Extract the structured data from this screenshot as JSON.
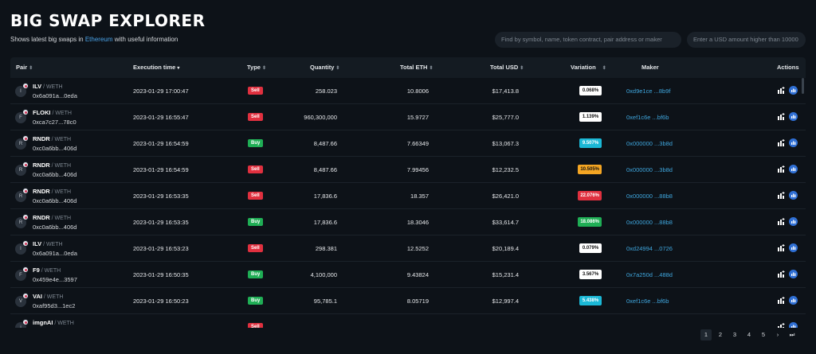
{
  "header": {
    "title": "BIG SWAP EXPLORER",
    "subtitle_prefix": "Shows latest big swaps in ",
    "subtitle_link": "Ethereum",
    "subtitle_suffix": " with useful information"
  },
  "search": {
    "symbol_placeholder": "Find by symbol, name, token contract, pair address or maker",
    "usd_placeholder": "Enter a USD amount higher than 10000"
  },
  "columns": {
    "pair": "Pair",
    "execution_time": "Execution time",
    "type": "Type",
    "quantity": "Quantity",
    "total_eth": "Total ETH",
    "total_usd": "Total USD",
    "variation": "Variation",
    "maker": "Maker",
    "actions": "Actions"
  },
  "rows": [
    {
      "initial": "I",
      "symbol": "ILV",
      "quote": " / WETH",
      "address": "0x6a091a...0eda",
      "time": "2023-01-29 17:00:47",
      "type": "Sell",
      "quantity": "258.023",
      "eth": "10.8006",
      "usd": "$17,413.8",
      "variation": "0.068%",
      "var_style": "white",
      "maker": "0xd9e1ce ...8b9f"
    },
    {
      "initial": "F",
      "symbol": "FLOKI",
      "quote": " / WETH",
      "address": "0xca7c27...78c0",
      "time": "2023-01-29 16:55:47",
      "type": "Sell",
      "quantity": "960,300,000",
      "eth": "15.9727",
      "usd": "$25,777.0",
      "variation": "1.139%",
      "var_style": "white",
      "maker": "0xef1c6e ...bf6b"
    },
    {
      "initial": "R",
      "symbol": "RNDR",
      "quote": " / WETH",
      "address": "0xc0a6bb...406d",
      "time": "2023-01-29 16:54:59",
      "type": "Buy",
      "quantity": "8,487.66",
      "eth": "7.66349",
      "usd": "$13,067.3",
      "variation": "9.507%",
      "var_style": "cyan",
      "maker": "0x000000 ...3b8d"
    },
    {
      "initial": "R",
      "symbol": "RNDR",
      "quote": " / WETH",
      "address": "0xc0a6bb...406d",
      "time": "2023-01-29 16:54:59",
      "type": "Sell",
      "quantity": "8,487.66",
      "eth": "7.99456",
      "usd": "$12,232.5",
      "variation": "10.505%",
      "var_style": "orange",
      "maker": "0x000000 ...3b8d"
    },
    {
      "initial": "R",
      "symbol": "RNDR",
      "quote": " / WETH",
      "address": "0xc0a6bb...406d",
      "time": "2023-01-29 16:53:35",
      "type": "Sell",
      "quantity": "17,836.6",
      "eth": "18.357",
      "usd": "$26,421.0",
      "variation": "22.076%",
      "var_style": "red",
      "maker": "0x000000 ...88b8"
    },
    {
      "initial": "R",
      "symbol": "RNDR",
      "quote": " / WETH",
      "address": "0xc0a6bb...406d",
      "time": "2023-01-29 16:53:35",
      "type": "Buy",
      "quantity": "17,836.6",
      "eth": "18.3046",
      "usd": "$33,614.7",
      "variation": "18.086%",
      "var_style": "green",
      "maker": "0x000000 ...88b8"
    },
    {
      "initial": "I",
      "symbol": "ILV",
      "quote": " / WETH",
      "address": "0x6a091a...0eda",
      "time": "2023-01-29 16:53:23",
      "type": "Sell",
      "quantity": "298.381",
      "eth": "12.5252",
      "usd": "$20,189.4",
      "variation": "0.079%",
      "var_style": "white",
      "maker": "0xd24994 ...0726"
    },
    {
      "initial": "F",
      "symbol": "F9",
      "quote": " / WETH",
      "address": "0x459e4e...3597",
      "time": "2023-01-29 16:50:35",
      "type": "Buy",
      "quantity": "4,100,000",
      "eth": "9.43824",
      "usd": "$15,231.4",
      "variation": "3.567%",
      "var_style": "white",
      "maker": "0x7a250d ...488d"
    },
    {
      "initial": "V",
      "symbol": "VAI",
      "quote": " / WETH",
      "address": "0xaf95d3...1ec2",
      "time": "2023-01-29 16:50:23",
      "type": "Buy",
      "quantity": "95,785.1",
      "eth": "8.05719",
      "usd": "$12,997.4",
      "variation": "5.438%",
      "var_style": "cyan",
      "maker": "0xef1c6e ...bf6b"
    },
    {
      "initial": "i",
      "symbol": "imgnAI",
      "quote": " / WETH",
      "address": "",
      "time": "",
      "type": "Sell",
      "quantity": "",
      "eth": "",
      "usd": "",
      "variation": "",
      "var_style": "white",
      "maker": ""
    }
  ],
  "pagination": {
    "pages": [
      "1",
      "2",
      "3",
      "4",
      "5"
    ],
    "active": "1",
    "next": "›",
    "last": "⏭"
  },
  "colors": {
    "background": "#0d1218",
    "sell": "#e0303f",
    "buy": "#1fae55",
    "link": "#3fa6dd",
    "var_white": "#ffffff",
    "var_cyan": "#1bb8d6",
    "var_orange": "#f5a623",
    "var_red": "#e0303f",
    "var_green": "#1fae55"
  },
  "icons": {
    "sort": "sort-arrows-icon",
    "sort_active": "chevron-down-icon",
    "chart_action": "chart-plus-icon",
    "explore_action": "bar-chart-icon"
  }
}
